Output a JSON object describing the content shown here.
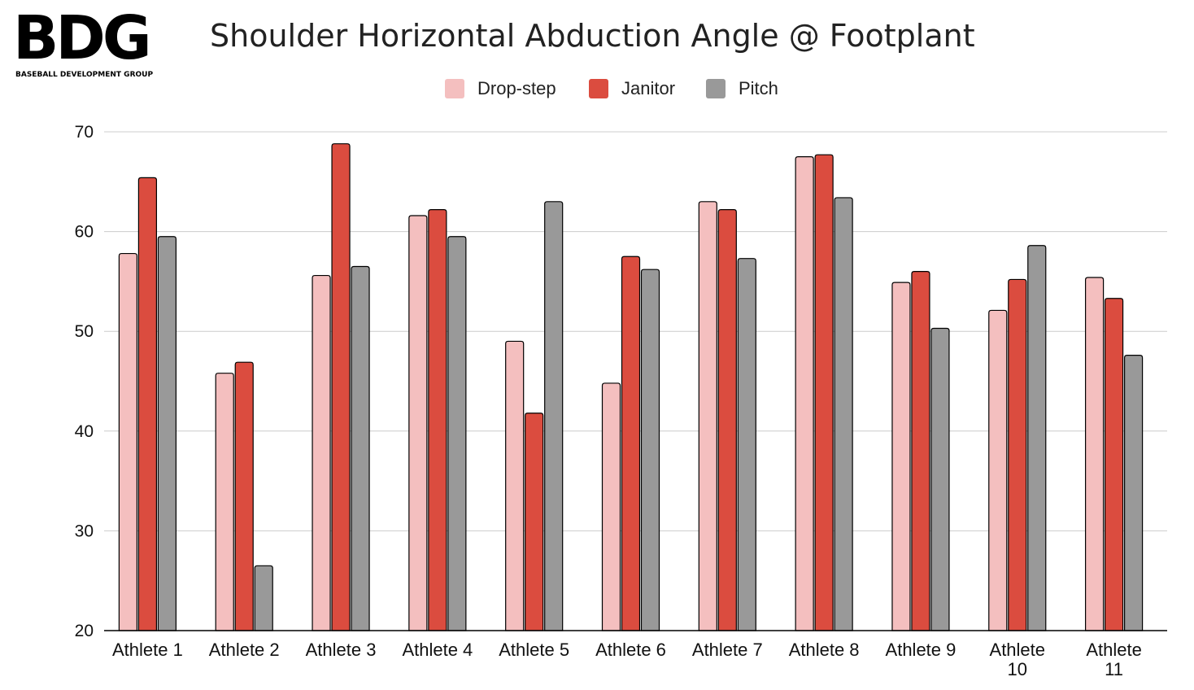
{
  "logo": {
    "letters": "BDG",
    "subtitle": "BASEBALL DEVELOPMENT GROUP"
  },
  "chart_data": {
    "type": "bar",
    "title": "Shoulder Horizontal Abduction Angle @ Footplant",
    "xlabel": "",
    "ylabel": "",
    "ylim": [
      20,
      70
    ],
    "yticks": [
      20,
      30,
      40,
      50,
      60,
      70
    ],
    "grid": true,
    "legend_position": "top-center",
    "categories": [
      [
        "Athlete 1"
      ],
      [
        "Athlete 2"
      ],
      [
        "Athlete 3"
      ],
      [
        "Athlete 4"
      ],
      [
        "Athlete 5"
      ],
      [
        "Athlete 6"
      ],
      [
        "Athlete 7"
      ],
      [
        "Athlete 8"
      ],
      [
        "Athlete 9"
      ],
      [
        "Athlete",
        "10"
      ],
      [
        "Athlete",
        "11"
      ]
    ],
    "series": [
      {
        "name": "Drop-step",
        "color": "#f4bfbf",
        "values": [
          57.8,
          45.8,
          55.6,
          61.6,
          49.0,
          44.8,
          63.0,
          67.5,
          54.9,
          52.1,
          55.4
        ]
      },
      {
        "name": "Janitor",
        "color": "#db4c3f",
        "values": [
          65.4,
          46.9,
          68.8,
          62.2,
          41.8,
          57.5,
          62.2,
          67.7,
          56.0,
          55.2,
          53.3
        ]
      },
      {
        "name": "Pitch",
        "color": "#999999",
        "values": [
          59.5,
          26.5,
          56.5,
          59.5,
          63.0,
          56.2,
          57.3,
          63.4,
          50.3,
          58.6,
          47.6
        ]
      }
    ]
  }
}
